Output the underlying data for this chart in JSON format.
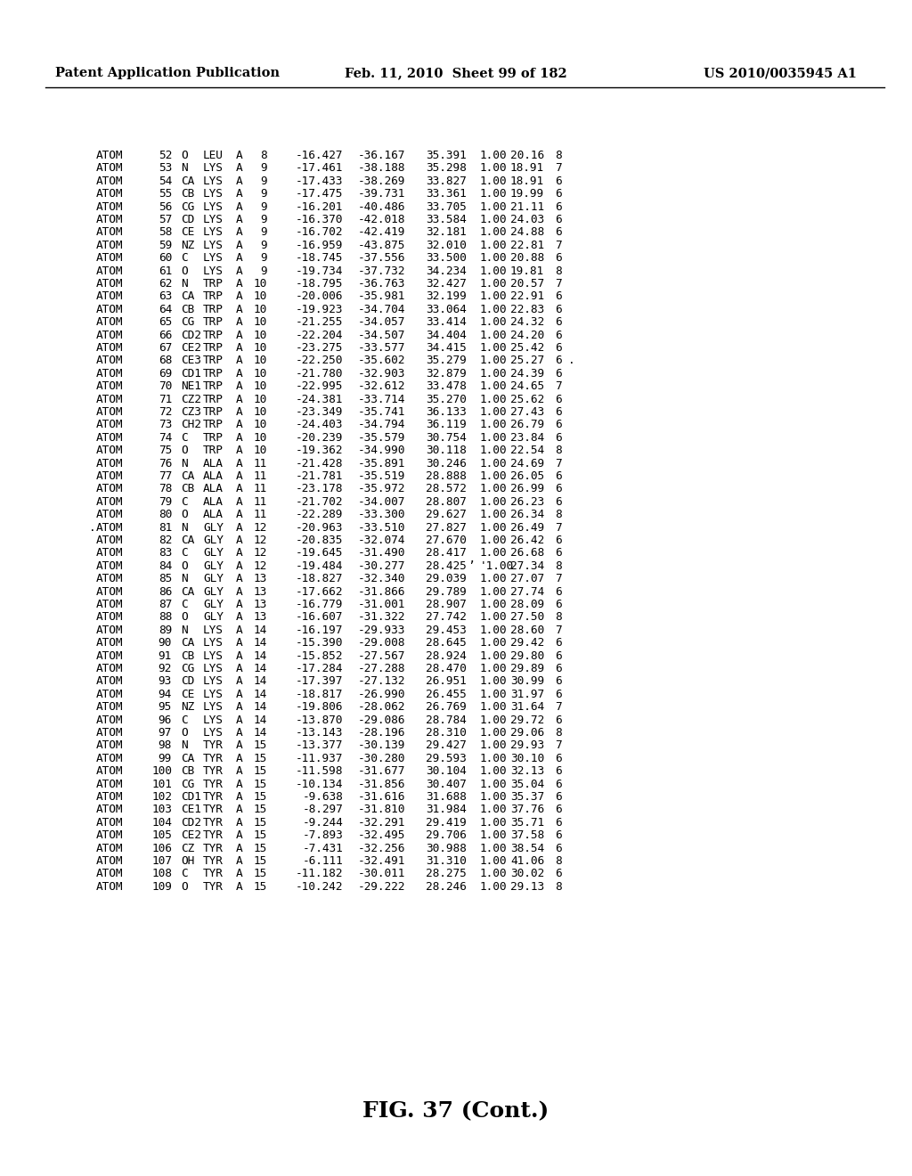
{
  "header_left": "Patent Application Publication",
  "header_mid": "Feb. 11, 2010  Sheet 99 of 182",
  "header_right": "US 2010/0035945 A1",
  "caption": "FIG. 37 (Cont.)",
  "rows": [
    {
      "prefix": "",
      "line": "ATOM     52  O   LEU A   8     -16.427 -36.167  35.391  1.00 20.16           8"
    },
    {
      "prefix": "",
      "line": "ATOM     53  N   LYS A   9     -17.461 -38.188  35.298  1.00 18.91           7"
    },
    {
      "prefix": "",
      "line": "ATOM     54  CA  LYS A   9     -17.433 -38.269  33.827  1.00 18.91           6"
    },
    {
      "prefix": "",
      "line": "ATOM     55  CB  LYS A   9     -17.475 -39.731  33.361  1.00 19.99           6"
    },
    {
      "prefix": "",
      "line": "ATOM     56  CG  LYS A   9     -16.201 -40.486  33.705  1.00 21.11           6"
    },
    {
      "prefix": "",
      "line": "ATOM     57  CD  LYS A   9     -16.370 -42.018  33.584  1.00 24.03           6"
    },
    {
      "prefix": "",
      "line": "ATOM     58  CE  LYS A   9     -16.702 -42.419  32.181  1.00 24.88           6"
    },
    {
      "prefix": "",
      "line": "ATOM     59  NZ  LYS A   9     -16.959 -43.875  32.010  1.00 22.81           7"
    },
    {
      "prefix": "",
      "line": "ATOM     60  C   LYS A   9     -18.745 -37.556  33.500  1.00 20.88           6"
    },
    {
      "prefix": "",
      "line": "ATOM     61  O   LYS A   9     -19.734 -37.732  34.234  1.00 19.81           8"
    },
    {
      "prefix": "",
      "line": "ATOM     62  N   TRP A  10     -18.795 -36.763  32.427  1.00 20.57           7"
    },
    {
      "prefix": "",
      "line": "ATOM     63  CA  TRP A  10     -20.006 -35.981  32.199  1.00 22.91           6"
    },
    {
      "prefix": "",
      "line": "ATOM     64  CB  TRP A  10     -19.923 -34.704  33.064  1.00 22.83           6"
    },
    {
      "prefix": "",
      "line": "ATOM     65  CG  TRP A  10     -21.255 -34.057  33.414  1.00 24.32           6"
    },
    {
      "prefix": "",
      "line": "ATOM     66  CD2 TRP A  10     -22.204 -34.507  34.404  1.00 24.20           6"
    },
    {
      "prefix": "",
      "line": "ATOM     67  CE2 TRP A  10     -23.275 -33.577  34.415  1.00 25.42           6"
    },
    {
      "prefix": "",
      "line": "ATOM     68  CE3 TRP A  10     -22.250 -35.602  35.279  1.00 25.27           6 ."
    },
    {
      "prefix": "",
      "line": "ATOM     69  CD1 TRP A  10     -21.780 -32.903  32.879  1.00 24.39           6"
    },
    {
      "prefix": "",
      "line": "ATOM     70  NE1 TRP A  10     -22.995 -32.612  33.478  1.00 24.65           7"
    },
    {
      "prefix": "",
      "line": "ATOM     71  CZ2 TRP A  10     -24.381 -33.714  35.270  1.00 25.62           6"
    },
    {
      "prefix": "",
      "line": "ATOM     72  CZ3 TRP A  10     -23.349 -35.741  36.133  1.00 27.43           6"
    },
    {
      "prefix": "",
      "line": "ATOM     73  CH2 TRP A  10     -24.403 -34.794  36.119  1.00 26.79           6"
    },
    {
      "prefix": "",
      "line": "ATOM     74  C   TRP A  10     -20.239 -35.579  30.754  1.00 23.84           6"
    },
    {
      "prefix": "",
      "line": "ATOM     75  O   TRP A  10     -19.362 -34.990  30.118  1.00 22.54           8"
    },
    {
      "prefix": "",
      "line": "ATOM     76  N   ALA A  11     -21.428 -35.891  30.246  1.00 24.69           7"
    },
    {
      "prefix": "",
      "line": "ATOM     77  CA  ALA A  11     -21.781 -35.519  28.888  1.00 26.05           6"
    },
    {
      "prefix": "",
      "line": "ATOM     78  CB  ALA A  11     -23.178 -35.972  28.572  1.00 26.99           6"
    },
    {
      "prefix": "",
      "line": "ATOM     79  C   ALA A  11     -21.702 -34.007  28.807  1.00 26.23           6"
    },
    {
      "prefix": "",
      "line": "ATOM     80  O   ALA A  11     -22.289 -33.300  29.627  1.00 26.34           8"
    },
    {
      "prefix": ".",
      "line": "ATOM     81  N   GLY A  12     -20.963 -33.510  27.827  1.00 26.49           7"
    },
    {
      "prefix": "",
      "line": "ATOM     82  CA  GLY A  12     -20.835 -32.074  27.670  1.00 26.42           6"
    },
    {
      "prefix": "",
      "line": "ATOM     83  C   GLY A  12     -19.645 -31.490  28.417  1.00 26.68           6"
    },
    {
      "prefix": "",
      "line": "ATOM     84  O   GLY A  12     -19.484 -30.277  28.425 '1.00 27.34           8"
    },
    {
      "prefix": "",
      "line": "ATOM     85  N   GLY A  13     -18.827 -32.340  29.039  1.00 27.07           7"
    },
    {
      "prefix": "",
      "line": "ATOM     86  CA  GLY A  13     -17.662 -31.866  29.789  1.00 27.74           6"
    },
    {
      "prefix": "",
      "line": "ATOM     87  C   GLY A  13     -16.779 -31.001  28.907  1.00 28.09           6"
    },
    {
      "prefix": "",
      "line": "ATOM     88  O   GLY A  13     -16.607 -31.322  27.742  1.00 27.50           8"
    },
    {
      "prefix": "",
      "line": "ATOM     89  N   LYS A  14     -16.197 -29.933  29.453  1.00 28.60           7"
    },
    {
      "prefix": "",
      "line": "ATOM     90  CA  LYS A  14     -15.390 -29.008  28.645  1.00 29.42           6"
    },
    {
      "prefix": "",
      "line": "ATOM     91  CB  LYS A  14     -15.852 -27.567  28.924  1.00 29.80           6"
    },
    {
      "prefix": "",
      "line": "ATOM     92  CG  LYS A  14     -17.284 -27.288  28.470  1.00 29.89           6"
    },
    {
      "prefix": "",
      "line": "ATOM     93  CD  LYS A  14     -17.397 -27.132  26.951  1.00 30.99           6"
    },
    {
      "prefix": "",
      "line": "ATOM     94  CE  LYS A  14     -18.817 -26.990  26.455  1.00 31.97           6"
    },
    {
      "prefix": "",
      "line": "ATOM     95  NZ  LYS A  14     -19.806 -28.062  26.769  1.00 31.64           7"
    },
    {
      "prefix": "",
      "line": "ATOM     96  C   LYS A  14     -13.870 -29.086  28.784  1.00 29.72           6"
    },
    {
      "prefix": "",
      "line": "ATOM     97  O   LYS A  14     -13.143 -28.196  28.310  1.00 29.06           8"
    },
    {
      "prefix": "",
      "line": "ATOM     98  N   TYR A  15     -13.377 -30.139  29.427  1.00 29.93           7"
    },
    {
      "prefix": "",
      "line": "ATOM     99  CA  TYR A  15     -11.937 -30.280  29.593  1.00 30.10           6"
    },
    {
      "prefix": "",
      "line": "ATOM    100  CB  TYR A  15     -11.598 -31.677  30.104  1.00 32.13           6"
    },
    {
      "prefix": "",
      "line": "ATOM    101  CG  TYR A  15     -10.134 -31.856  30.407  1.00 35.04           6"
    },
    {
      "prefix": "",
      "line": "ATOM    102  CD1 TYR A  15      -9.638 -31.616  31.688  1.00 35.37           6"
    },
    {
      "prefix": "",
      "line": "ATOM    103  CE1 TYR A  15      -8.297 -31.810  31.984  1.00 37.76           6"
    },
    {
      "prefix": "",
      "line": "ATOM    104  CD2 TYR A  15      -9.244 -32.291  29.419  1.00 35.71           6"
    },
    {
      "prefix": "",
      "line": "ATOM    105  CE2 TYR A  15      -7.893 -32.495  29.706  1.00 37.58           6"
    },
    {
      "prefix": "",
      "line": "ATOM    106  CZ  TYR A  15      -7.431 -32.256  30.988  1.00 38.54           6"
    },
    {
      "prefix": "",
      "line": "ATOM    107  OH  TYR A  15      -6.111 -32.491  31.310  1.00 41.06           8"
    },
    {
      "prefix": "",
      "line": "ATOM    108  C   TYR A  15     -11.182 -30.011  28.275  1.00 30.02           6"
    },
    {
      "prefix": "",
      "line": "ATOM    109  O   TYR A  15     -10.242 -29.222  28.246  1.00 29.13           8"
    }
  ]
}
